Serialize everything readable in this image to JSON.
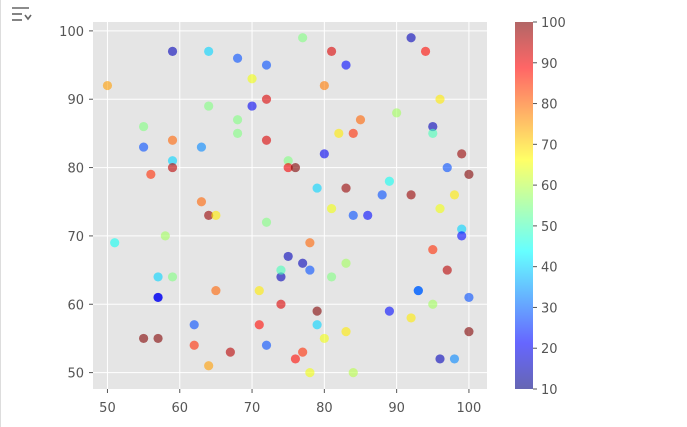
{
  "icons": {
    "corner": "filter-lines-icon"
  },
  "colors": {
    "plot_bg": "#e5e5e5",
    "grid": "#ffffff",
    "text": "#555555"
  },
  "chart_data": {
    "type": "scatter",
    "title": "",
    "xlabel": "",
    "ylabel": "",
    "xlim": [
      48,
      102.5
    ],
    "ylim": [
      47.6,
      101.3
    ],
    "xticks": [
      50,
      60,
      70,
      80,
      90,
      100
    ],
    "yticks": [
      50,
      60,
      70,
      80,
      90,
      100
    ],
    "grid": true,
    "colormap": "jet",
    "alpha": 0.6,
    "colorbar": {
      "range": [
        10,
        100
      ],
      "ticks": [
        10,
        20,
        30,
        40,
        50,
        60,
        70,
        80,
        90,
        100
      ]
    },
    "points": [
      {
        "x": 59,
        "y": 97,
        "c": 15
      },
      {
        "x": 64,
        "y": 97,
        "c": 40
      },
      {
        "x": 68,
        "y": 96,
        "c": 28
      },
      {
        "x": 72,
        "y": 95,
        "c": 28
      },
      {
        "x": 77,
        "y": 99,
        "c": 55
      },
      {
        "x": 81,
        "y": 97,
        "c": 92
      },
      {
        "x": 83,
        "y": 95,
        "c": 22
      },
      {
        "x": 92,
        "y": 99,
        "c": 15
      },
      {
        "x": 94,
        "y": 97,
        "c": 88
      },
      {
        "x": 50,
        "y": 92,
        "c": 75
      },
      {
        "x": 70,
        "y": 93,
        "c": 65
      },
      {
        "x": 80,
        "y": 92,
        "c": 78
      },
      {
        "x": 64,
        "y": 89,
        "c": 55
      },
      {
        "x": 70,
        "y": 89,
        "c": 20
      },
      {
        "x": 72,
        "y": 90,
        "c": 92
      },
      {
        "x": 90,
        "y": 88,
        "c": 58
      },
      {
        "x": 96,
        "y": 90,
        "c": 68
      },
      {
        "x": 55,
        "y": 86,
        "c": 55
      },
      {
        "x": 68,
        "y": 87,
        "c": 55
      },
      {
        "x": 68,
        "y": 85,
        "c": 55
      },
      {
        "x": 82,
        "y": 85,
        "c": 68
      },
      {
        "x": 84,
        "y": 85,
        "c": 85
      },
      {
        "x": 85,
        "y": 87,
        "c": 80
      },
      {
        "x": 95,
        "y": 86,
        "c": 15
      },
      {
        "x": 95,
        "y": 85,
        "c": 50
      },
      {
        "x": 55,
        "y": 83,
        "c": 28
      },
      {
        "x": 59,
        "y": 84,
        "c": 80
      },
      {
        "x": 63,
        "y": 83,
        "c": 33
      },
      {
        "x": 72,
        "y": 84,
        "c": 92
      },
      {
        "x": 80,
        "y": 82,
        "c": 20
      },
      {
        "x": 99,
        "y": 82,
        "c": 98
      },
      {
        "x": 56,
        "y": 79,
        "c": 85
      },
      {
        "x": 59,
        "y": 81,
        "c": 40
      },
      {
        "x": 59,
        "y": 80,
        "c": 95
      },
      {
        "x": 75,
        "y": 81,
        "c": 55
      },
      {
        "x": 75,
        "y": 80,
        "c": 90
      },
      {
        "x": 76,
        "y": 80,
        "c": 100
      },
      {
        "x": 97,
        "y": 80,
        "c": 28
      },
      {
        "x": 100,
        "y": 79,
        "c": 100
      },
      {
        "x": 79,
        "y": 77,
        "c": 40
      },
      {
        "x": 83,
        "y": 77,
        "c": 98
      },
      {
        "x": 88,
        "y": 76,
        "c": 28
      },
      {
        "x": 89,
        "y": 78,
        "c": 45
      },
      {
        "x": 92,
        "y": 76,
        "c": 98
      },
      {
        "x": 98,
        "y": 76,
        "c": 68
      },
      {
        "x": 63,
        "y": 75,
        "c": 80
      },
      {
        "x": 64,
        "y": 73,
        "c": 98
      },
      {
        "x": 65,
        "y": 73,
        "c": 68
      },
      {
        "x": 72,
        "y": 72,
        "c": 55
      },
      {
        "x": 81,
        "y": 74,
        "c": 65
      },
      {
        "x": 84,
        "y": 73,
        "c": 28
      },
      {
        "x": 86,
        "y": 73,
        "c": 22
      },
      {
        "x": 96,
        "y": 74,
        "c": 65
      },
      {
        "x": 99,
        "y": 71,
        "c": 40
      },
      {
        "x": 99,
        "y": 70,
        "c": 22
      },
      {
        "x": 51,
        "y": 69,
        "c": 45
      },
      {
        "x": 58,
        "y": 70,
        "c": 58
      },
      {
        "x": 75,
        "y": 67,
        "c": 15
      },
      {
        "x": 77,
        "y": 66,
        "c": 15
      },
      {
        "x": 78,
        "y": 69,
        "c": 80
      },
      {
        "x": 83,
        "y": 66,
        "c": 58
      },
      {
        "x": 95,
        "y": 68,
        "c": 85
      },
      {
        "x": 97,
        "y": 65,
        "c": 95
      },
      {
        "x": 57,
        "y": 64,
        "c": 40
      },
      {
        "x": 59,
        "y": 64,
        "c": 55
      },
      {
        "x": 74,
        "y": 64,
        "c": 15
      },
      {
        "x": 74,
        "y": 65,
        "c": 50
      },
      {
        "x": 78,
        "y": 65,
        "c": 28
      },
      {
        "x": 81,
        "y": 64,
        "c": 55
      },
      {
        "x": 57,
        "y": 61,
        "c": 20
      },
      {
        "x": 57,
        "y": 61,
        "c": 20
      },
      {
        "x": 65,
        "y": 62,
        "c": 80
      },
      {
        "x": 71,
        "y": 62,
        "c": 68
      },
      {
        "x": 74,
        "y": 60,
        "c": 92
      },
      {
        "x": 79,
        "y": 59,
        "c": 100
      },
      {
        "x": 89,
        "y": 59,
        "c": 22
      },
      {
        "x": 93,
        "y": 62,
        "c": 30
      },
      {
        "x": 93,
        "y": 62,
        "c": 30
      },
      {
        "x": 95,
        "y": 60,
        "c": 58
      },
      {
        "x": 100,
        "y": 61,
        "c": 28
      },
      {
        "x": 62,
        "y": 57,
        "c": 28
      },
      {
        "x": 71,
        "y": 57,
        "c": 88
      },
      {
        "x": 79,
        "y": 57,
        "c": 40
      },
      {
        "x": 83,
        "y": 56,
        "c": 68
      },
      {
        "x": 92,
        "y": 58,
        "c": 68
      },
      {
        "x": 100,
        "y": 56,
        "c": 100
      },
      {
        "x": 55,
        "y": 55,
        "c": 100
      },
      {
        "x": 57,
        "y": 55,
        "c": 100
      },
      {
        "x": 62,
        "y": 54,
        "c": 85
      },
      {
        "x": 67,
        "y": 53,
        "c": 95
      },
      {
        "x": 72,
        "y": 54,
        "c": 28
      },
      {
        "x": 76,
        "y": 52,
        "c": 88
      },
      {
        "x": 77,
        "y": 53,
        "c": 85
      },
      {
        "x": 80,
        "y": 55,
        "c": 65
      },
      {
        "x": 96,
        "y": 52,
        "c": 15
      },
      {
        "x": 98,
        "y": 52,
        "c": 33
      },
      {
        "x": 64,
        "y": 51,
        "c": 75
      },
      {
        "x": 78,
        "y": 50,
        "c": 65
      },
      {
        "x": 84,
        "y": 50,
        "c": 60
      }
    ]
  }
}
